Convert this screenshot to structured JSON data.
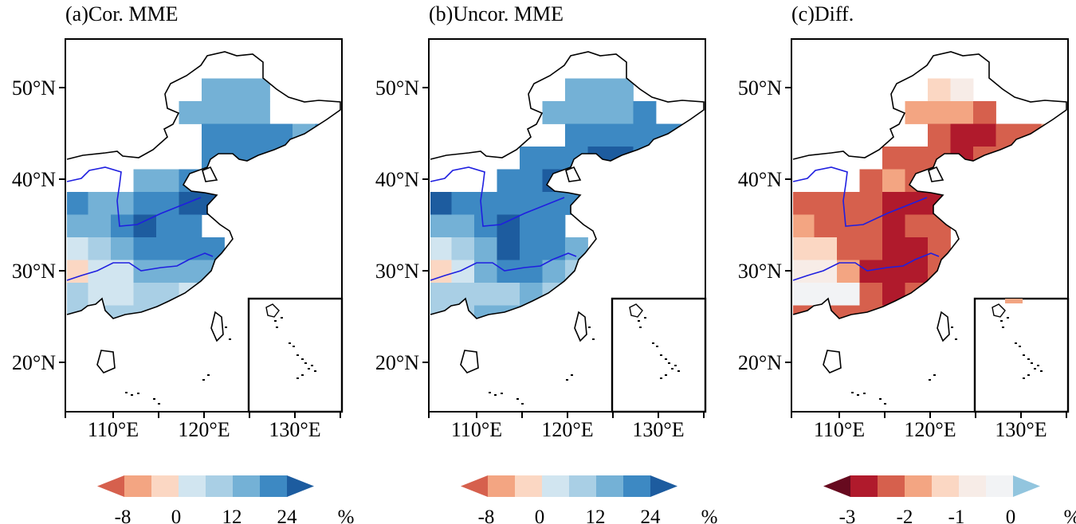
{
  "colors": {
    "blues": [
      "#d1e5f0",
      "#a9cfe5",
      "#74b1d6",
      "#3d89c3",
      "#1d5c9f"
    ],
    "reds_a": [
      "#fbd7c3",
      "#f3a582",
      "#d6604d"
    ],
    "diff": [
      "#670a1f",
      "#b01a2c",
      "#d6604d",
      "#f3a582",
      "#fbd7c3",
      "#f7ece7",
      "#f2f3f5",
      "#92c5de"
    ],
    "river": "#1f1fe0",
    "coast": "#000000"
  },
  "axes": {
    "lat_ticks": [
      "50°N",
      "40°N",
      "30°N",
      "20°N"
    ],
    "lon_ticks": [
      "110°E",
      "120°E",
      "130°E"
    ]
  },
  "panels": [
    {
      "key": "a",
      "title": "(a)Cor. MME",
      "colorbar": {
        "ticks": [
          "-8",
          "0",
          "12",
          "24"
        ],
        "unit": "%"
      }
    },
    {
      "key": "b",
      "title": "(b)Uncor. MME",
      "colorbar": {
        "ticks": [
          "-8",
          "0",
          "12",
          "24"
        ],
        "unit": "%"
      }
    },
    {
      "key": "c",
      "title": "(c)Diff.",
      "colorbar": {
        "ticks": [
          "-3",
          "-2",
          "-1",
          "0"
        ],
        "unit": "%"
      }
    }
  ]
}
